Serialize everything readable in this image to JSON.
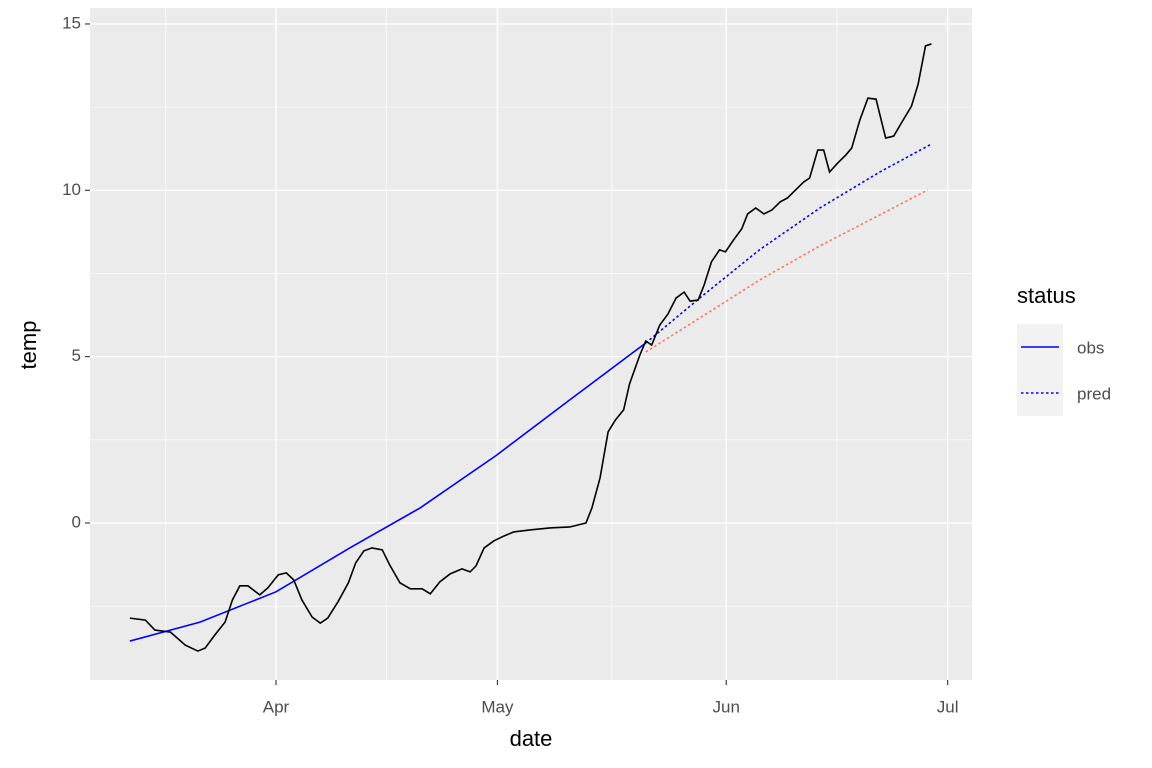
{
  "chart_data": {
    "type": "line",
    "x_label": "date",
    "y_label": "temp",
    "xlim": [
      5.8,
      125.3
    ],
    "ylim": [
      -4.72,
      15.48
    ],
    "xticks": [
      {
        "value": 31,
        "label": "Apr"
      },
      {
        "value": 61,
        "label": "May"
      },
      {
        "value": 92,
        "label": "Jun"
      },
      {
        "value": 122,
        "label": "Jul"
      }
    ],
    "yticks": [
      0,
      5,
      10,
      15
    ],
    "grid": true,
    "legend_title": "status",
    "legend_position": "right",
    "series": [
      {
        "name": "obs",
        "color": "#0000ff",
        "linetype": "solid",
        "x": [
          11.2,
          20.7,
          31.0,
          41.0,
          50.5,
          60.9,
          70.8,
          81.1
        ],
        "values": [
          -3.55,
          -2.98,
          -2.07,
          -0.75,
          0.45,
          2.04,
          3.7,
          5.41
        ]
      },
      {
        "color": "#f8766d",
        "linetype": "dotted",
        "x": [
          81.1,
          88.4,
          96.5,
          104.7,
          112.8,
          119.3
        ],
        "values": [
          5.14,
          6.16,
          7.3,
          8.33,
          9.26,
          10.01
        ]
      },
      {
        "name": "pred",
        "color": "#0000ff",
        "linetype": "dotted",
        "x": [
          81.1,
          88.4,
          96.5,
          104.7,
          112.8,
          119.8
        ],
        "values": [
          5.41,
          6.76,
          8.21,
          9.47,
          10.55,
          11.39
        ]
      },
      {
        "color": "#000000",
        "linetype": "solid",
        "x": [
          11.2,
          13.3,
          14.6,
          16.7,
          18.7,
          20.4,
          21.4,
          22.7,
          24.1,
          25.1,
          26.1,
          27.2,
          28.8,
          29.9,
          31.3,
          32.4,
          33.4,
          34.5,
          35.9,
          37.0,
          38.0,
          39.4,
          40.8,
          41.8,
          42.9,
          44.0,
          45.4,
          46.4,
          47.8,
          49.2,
          50.8,
          51.9,
          53.2,
          54.6,
          56.2,
          57.3,
          58.1,
          59.2,
          60.5,
          61.9,
          63.2,
          65.4,
          68.1,
          70.8,
          73.0,
          73.8,
          74.9,
          76.0,
          77.0,
          78.1,
          78.9,
          80.3,
          81.1,
          81.9,
          83.0,
          84.1,
          85.2,
          86.3,
          87.1,
          88.2,
          89.0,
          90.0,
          91.1,
          91.9,
          93.0,
          94.1,
          94.9,
          96.0,
          97.1,
          98.2,
          99.3,
          100.3,
          101.4,
          102.5,
          103.3,
          104.4,
          105.2,
          106.0,
          107.1,
          108.2,
          109.0,
          110.1,
          111.2,
          112.3,
          113.6,
          114.7,
          115.8,
          117.1,
          118.0,
          119.0,
          119.8
        ],
        "values": [
          -2.86,
          -2.92,
          -3.22,
          -3.28,
          -3.67,
          -3.85,
          -3.76,
          -3.37,
          -2.98,
          -2.31,
          -1.89,
          -1.89,
          -2.16,
          -1.95,
          -1.56,
          -1.5,
          -1.71,
          -2.31,
          -2.83,
          -3.01,
          -2.86,
          -2.37,
          -1.8,
          -1.2,
          -0.84,
          -0.75,
          -0.81,
          -1.26,
          -1.8,
          -1.98,
          -1.98,
          -2.13,
          -1.77,
          -1.53,
          -1.38,
          -1.47,
          -1.29,
          -0.75,
          -0.54,
          -0.39,
          -0.27,
          -0.21,
          -0.15,
          -0.12,
          0.0,
          0.45,
          1.35,
          2.74,
          3.1,
          3.4,
          4.18,
          5.05,
          5.47,
          5.35,
          5.95,
          6.28,
          6.76,
          6.94,
          6.67,
          6.7,
          7.15,
          7.85,
          8.21,
          8.15,
          8.51,
          8.84,
          9.29,
          9.47,
          9.29,
          9.41,
          9.65,
          9.77,
          10.01,
          10.25,
          10.37,
          11.21,
          11.21,
          10.55,
          10.82,
          11.06,
          11.27,
          12.11,
          12.77,
          12.74,
          11.57,
          11.63,
          12.05,
          12.53,
          13.19,
          14.34,
          14.4
        ]
      }
    ]
  }
}
